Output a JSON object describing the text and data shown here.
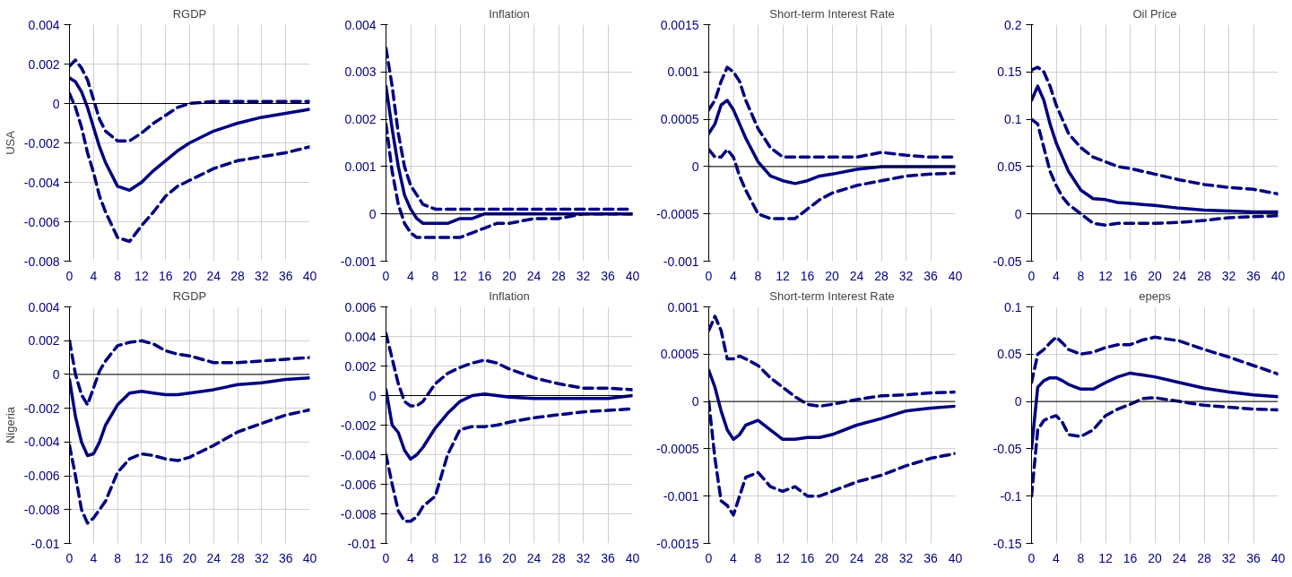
{
  "chart_data": [
    {
      "type": "line",
      "title": "RGDP",
      "ylabel": "USA",
      "x": [
        0,
        1,
        2,
        3,
        4,
        5,
        6,
        8,
        10,
        12,
        14,
        16,
        18,
        20,
        24,
        28,
        32,
        36,
        40
      ],
      "xlim": [
        0,
        40
      ],
      "xticks": [
        0,
        4,
        8,
        12,
        16,
        20,
        24,
        28,
        32,
        36,
        40
      ],
      "ylim": [
        -0.008,
        0.004
      ],
      "yticks": [
        -0.008,
        -0.006,
        -0.004,
        -0.002,
        0,
        0.002,
        0.004
      ],
      "grid": true,
      "ref_lines": [
        {
          "axis": "y",
          "value": 0,
          "color": "#000000"
        }
      ],
      "series": [
        {
          "color": "#000080",
          "line_style": "dashed",
          "values": [
            0.0019,
            0.0022,
            0.0018,
            0.0012,
            0.0002,
            -0.0008,
            -0.0014,
            -0.0019,
            -0.0019,
            -0.0015,
            -0.001,
            -0.0006,
            -0.0002,
            0.0,
            0.0001,
            0.0001,
            0.0001,
            0.0001,
            0.0001
          ]
        },
        {
          "color": "#000080",
          "line_style": "solid",
          "values": [
            0.0013,
            0.0011,
            0.0006,
            -0.0002,
            -0.0012,
            -0.0022,
            -0.003,
            -0.0042,
            -0.0044,
            -0.004,
            -0.0034,
            -0.0029,
            -0.0024,
            -0.002,
            -0.0014,
            -0.001,
            -0.0007,
            -0.0005,
            -0.0003
          ]
        },
        {
          "color": "#000080",
          "line_style": "dashed",
          "values": [
            0.0005,
            -0.0002,
            -0.0012,
            -0.0025,
            -0.0035,
            -0.0047,
            -0.0055,
            -0.0068,
            -0.007,
            -0.0062,
            -0.0055,
            -0.0047,
            -0.0042,
            -0.0039,
            -0.0033,
            -0.0029,
            -0.0027,
            -0.0025,
            -0.0022
          ]
        }
      ]
    },
    {
      "type": "line",
      "title": "Inflation",
      "x": [
        0,
        1,
        2,
        3,
        4,
        5,
        6,
        8,
        10,
        12,
        14,
        16,
        18,
        20,
        24,
        28,
        32,
        36,
        40
      ],
      "xlim": [
        0,
        40
      ],
      "xticks": [
        0,
        4,
        8,
        12,
        16,
        20,
        24,
        28,
        32,
        36,
        40
      ],
      "ylim": [
        -0.001,
        0.004
      ],
      "yticks": [
        -0.001,
        0,
        0.001,
        0.002,
        0.003,
        0.004
      ],
      "grid": true,
      "ref_lines": [
        {
          "axis": "y",
          "value": 0,
          "color": "#000000"
        }
      ],
      "series": [
        {
          "color": "#000080",
          "line_style": "dashed",
          "values": [
            0.0035,
            0.0027,
            0.0017,
            0.001,
            0.0006,
            0.0004,
            0.0002,
            0.0001,
            0.0001,
            0.0001,
            0.0001,
            0.0001,
            0.0001,
            0.0001,
            0.0001,
            0.0001,
            0.0001,
            0.0001,
            0.0001
          ]
        },
        {
          "color": "#000080",
          "line_style": "solid",
          "values": [
            0.0027,
            0.0018,
            0.001,
            0.0004,
            0.0001,
            -0.0001,
            -0.0002,
            -0.0002,
            -0.0002,
            -0.0001,
            -0.0001,
            0,
            0,
            0,
            0,
            0,
            0,
            0,
            0
          ]
        },
        {
          "color": "#000080",
          "line_style": "dashed",
          "values": [
            0.0019,
            0.0009,
            0.0002,
            -0.0002,
            -0.0004,
            -0.0005,
            -0.0005,
            -0.0005,
            -0.0005,
            -0.0005,
            -0.0004,
            -0.0003,
            -0.0002,
            -0.0002,
            -0.0001,
            -0.0001,
            0,
            0,
            0
          ]
        }
      ]
    },
    {
      "type": "line",
      "title": "Short-term Interest Rate",
      "x": [
        0,
        1,
        2,
        3,
        4,
        5,
        6,
        8,
        10,
        12,
        14,
        16,
        18,
        20,
        24,
        28,
        32,
        36,
        40
      ],
      "xlim": [
        0,
        40
      ],
      "xticks": [
        0,
        4,
        8,
        12,
        16,
        20,
        24,
        28,
        32,
        36,
        40
      ],
      "ylim": [
        -0.001,
        0.0015
      ],
      "yticks": [
        -0.001,
        -0.0005,
        0,
        0.0005,
        0.001,
        0.0015
      ],
      "grid": true,
      "ref_lines": [
        {
          "axis": "y",
          "value": 0,
          "color": "#000000"
        }
      ],
      "series": [
        {
          "color": "#000080",
          "line_style": "dashed",
          "values": [
            0.0006,
            0.0007,
            0.0009,
            0.00105,
            0.001,
            0.0009,
            0.0007,
            0.0004,
            0.0002,
            0.0001,
            0.0001,
            0.0001,
            0.0001,
            0.0001,
            0.0001,
            0.00015,
            0.00012,
            0.0001,
            0.0001
          ]
        },
        {
          "color": "#000080",
          "line_style": "solid",
          "values": [
            0.00035,
            0.00045,
            0.00065,
            0.0007,
            0.0006,
            0.00045,
            0.0003,
            5e-05,
            -0.0001,
            -0.00015,
            -0.00018,
            -0.00015,
            -0.0001,
            -8e-05,
            -3e-05,
            0,
            0,
            0,
            0
          ]
        },
        {
          "color": "#000080",
          "line_style": "dashed",
          "values": [
            0.00018,
            0.0001,
            0.0001,
            0.00018,
            0.0001,
            -0.0001,
            -0.00025,
            -0.0005,
            -0.00055,
            -0.00055,
            -0.00055,
            -0.00045,
            -0.00035,
            -0.00028,
            -0.0002,
            -0.00015,
            -0.0001,
            -8e-05,
            -7e-05
          ]
        }
      ]
    },
    {
      "type": "line",
      "title": "Oil Price",
      "x": [
        0,
        1,
        2,
        3,
        4,
        5,
        6,
        8,
        10,
        12,
        14,
        16,
        18,
        20,
        24,
        28,
        32,
        36,
        40
      ],
      "xlim": [
        0,
        40
      ],
      "xticks": [
        0,
        4,
        8,
        12,
        16,
        20,
        24,
        28,
        32,
        36,
        40
      ],
      "ylim": [
        -0.05,
        0.2
      ],
      "yticks": [
        -0.05,
        0,
        0.05,
        0.1,
        0.15,
        0.2
      ],
      "grid": true,
      "ref_lines": [
        {
          "axis": "y",
          "value": 0,
          "color": "#000000"
        }
      ],
      "series": [
        {
          "color": "#000080",
          "line_style": "dashed",
          "values": [
            0.152,
            0.155,
            0.15,
            0.135,
            0.115,
            0.1,
            0.085,
            0.07,
            0.06,
            0.055,
            0.05,
            0.048,
            0.045,
            0.042,
            0.036,
            0.031,
            0.028,
            0.026,
            0.021
          ]
        },
        {
          "color": "#000080",
          "line_style": "solid",
          "values": [
            0.12,
            0.135,
            0.12,
            0.095,
            0.075,
            0.06,
            0.045,
            0.025,
            0.016,
            0.015,
            0.012,
            0.011,
            0.01,
            0.009,
            0.006,
            0.004,
            0.003,
            0.002,
            0.002
          ]
        },
        {
          "color": "#000080",
          "line_style": "dashed",
          "values": [
            0.1,
            0.095,
            0.07,
            0.045,
            0.03,
            0.018,
            0.01,
            0.0,
            -0.01,
            -0.012,
            -0.01,
            -0.01,
            -0.01,
            -0.01,
            -0.009,
            -0.007,
            -0.004,
            -0.003,
            -0.002
          ]
        }
      ]
    },
    {
      "type": "line",
      "title": "RGDP",
      "ylabel": "Nigeria",
      "x": [
        0,
        1,
        2,
        3,
        4,
        5,
        6,
        8,
        10,
        12,
        14,
        16,
        18,
        20,
        24,
        28,
        32,
        36,
        40
      ],
      "xlim": [
        0,
        40
      ],
      "xticks": [
        0,
        4,
        8,
        12,
        16,
        20,
        24,
        28,
        32,
        36,
        40
      ],
      "ylim": [
        -0.01,
        0.004
      ],
      "yticks": [
        -0.01,
        -0.008,
        -0.006,
        -0.004,
        -0.002,
        0,
        0.002,
        0.004
      ],
      "grid": true,
      "ref_lines": [
        {
          "axis": "y",
          "value": 0,
          "color": "#000000"
        }
      ],
      "series": [
        {
          "color": "#000080",
          "line_style": "dashed",
          "values": [
            0.002,
            0.0,
            -0.0012,
            -0.0018,
            -0.0008,
            0.0002,
            0.0008,
            0.0017,
            0.0019,
            0.002,
            0.0018,
            0.0014,
            0.0012,
            0.0011,
            0.0007,
            0.0007,
            0.0008,
            0.0009,
            0.001
          ]
        },
        {
          "color": "#000080",
          "line_style": "solid",
          "values": [
            -0.0003,
            -0.0025,
            -0.004,
            -0.0048,
            -0.0047,
            -0.004,
            -0.003,
            -0.0018,
            -0.0011,
            -0.001,
            -0.0011,
            -0.0012,
            -0.0012,
            -0.0011,
            -0.0009,
            -0.0006,
            -0.0005,
            -0.0003,
            -0.0002
          ]
        },
        {
          "color": "#000080",
          "line_style": "dashed",
          "values": [
            -0.0042,
            -0.006,
            -0.008,
            -0.0088,
            -0.0085,
            -0.008,
            -0.0075,
            -0.0058,
            -0.005,
            -0.0047,
            -0.0048,
            -0.005,
            -0.0051,
            -0.0049,
            -0.0042,
            -0.0034,
            -0.0029,
            -0.0024,
            -0.0021
          ]
        }
      ]
    },
    {
      "type": "line",
      "title": "Inflation",
      "x": [
        0,
        1,
        2,
        3,
        4,
        5,
        6,
        8,
        10,
        12,
        14,
        16,
        18,
        20,
        24,
        28,
        32,
        36,
        40
      ],
      "xlim": [
        0,
        40
      ],
      "xticks": [
        0,
        4,
        8,
        12,
        16,
        20,
        24,
        28,
        32,
        36,
        40
      ],
      "ylim": [
        -0.01,
        0.006
      ],
      "yticks": [
        -0.01,
        -0.008,
        -0.006,
        -0.004,
        -0.002,
        0,
        0.002,
        0.004,
        0.006
      ],
      "grid": true,
      "ref_lines": [
        {
          "axis": "y",
          "value": 0,
          "color": "#000000"
        }
      ],
      "series": [
        {
          "color": "#000080",
          "line_style": "dashed",
          "values": [
            0.0042,
            0.0025,
            0.0008,
            -0.0004,
            -0.0007,
            -0.0007,
            -0.0004,
            0.0008,
            0.0015,
            0.0019,
            0.0022,
            0.0024,
            0.0022,
            0.0018,
            0.0012,
            0.0008,
            0.0005,
            0.0005,
            0.0004
          ]
        },
        {
          "color": "#000080",
          "line_style": "solid",
          "values": [
            0.0004,
            -0.002,
            -0.0025,
            -0.0037,
            -0.0043,
            -0.004,
            -0.0035,
            -0.0022,
            -0.0012,
            -0.0004,
            0,
            0.0001,
            0,
            -0.0001,
            -0.0002,
            -0.0002,
            -0.0002,
            -0.0002,
            0
          ]
        },
        {
          "color": "#000080",
          "line_style": "dashed",
          "values": [
            -0.004,
            -0.006,
            -0.0078,
            -0.0085,
            -0.0085,
            -0.0082,
            -0.0075,
            -0.0068,
            -0.004,
            -0.0023,
            -0.0021,
            -0.0021,
            -0.002,
            -0.0018,
            -0.0015,
            -0.0013,
            -0.0011,
            -0.001,
            -0.0009
          ]
        }
      ]
    },
    {
      "type": "line",
      "title": "Short-term Interest Rate",
      "x": [
        0,
        1,
        2,
        3,
        4,
        5,
        6,
        8,
        10,
        12,
        14,
        16,
        18,
        20,
        24,
        28,
        32,
        36,
        40
      ],
      "xlim": [
        0,
        40
      ],
      "xticks": [
        0,
        4,
        8,
        12,
        16,
        20,
        24,
        28,
        32,
        36,
        40
      ],
      "ylim": [
        -0.0015,
        0.001
      ],
      "yticks": [
        -0.0015,
        -0.001,
        -0.0005,
        0,
        0.0005,
        0.001
      ],
      "grid": true,
      "ref_lines": [
        {
          "axis": "y",
          "value": 0,
          "color": "#000000"
        }
      ],
      "series": [
        {
          "color": "#000080",
          "line_style": "dashed",
          "values": [
            0.00075,
            0.0009,
            0.00075,
            0.00045,
            0.00045,
            0.00048,
            0.00045,
            0.00038,
            0.00025,
            0.00015,
            5e-05,
            -3e-05,
            -5e-05,
            -3e-05,
            2e-05,
            6e-05,
            7e-05,
            9e-05,
            0.0001
          ]
        },
        {
          "color": "#000080",
          "line_style": "solid",
          "values": [
            0.00033,
            0.00015,
            -0.0001,
            -0.0003,
            -0.0004,
            -0.00035,
            -0.00025,
            -0.0002,
            -0.0003,
            -0.0004,
            -0.0004,
            -0.00038,
            -0.00038,
            -0.00035,
            -0.00025,
            -0.00018,
            -0.0001,
            -7e-05,
            -5e-05
          ]
        },
        {
          "color": "#000080",
          "line_style": "dashed",
          "values": [
            0,
            -0.0006,
            -0.00105,
            -0.0011,
            -0.0012,
            -0.001,
            -0.0008,
            -0.00075,
            -0.0009,
            -0.00095,
            -0.0009,
            -0.001,
            -0.001,
            -0.00095,
            -0.00085,
            -0.00078,
            -0.00068,
            -0.0006,
            -0.00055
          ]
        }
      ]
    },
    {
      "type": "line",
      "title": "epeps",
      "x": [
        0,
        1,
        2,
        3,
        4,
        5,
        6,
        8,
        10,
        12,
        14,
        16,
        18,
        20,
        24,
        28,
        32,
        36,
        40
      ],
      "xlim": [
        0,
        40
      ],
      "xticks": [
        0,
        4,
        8,
        12,
        16,
        20,
        24,
        28,
        32,
        36,
        40
      ],
      "ylim": [
        -0.15,
        0.1
      ],
      "yticks": [
        -0.15,
        -0.1,
        -0.05,
        0,
        0.05,
        0.1
      ],
      "grid": true,
      "ref_lines": [
        {
          "axis": "y",
          "value": 0,
          "color": "#000000"
        }
      ],
      "series": [
        {
          "color": "#000080",
          "line_style": "dashed",
          "values": [
            0.02,
            0.05,
            0.055,
            0.062,
            0.068,
            0.062,
            0.055,
            0.05,
            0.052,
            0.057,
            0.06,
            0.06,
            0.065,
            0.068,
            0.064,
            0.055,
            0.047,
            0.038,
            0.029
          ]
        },
        {
          "color": "#000080",
          "line_style": "solid",
          "values": [
            -0.05,
            0.015,
            0.022,
            0.025,
            0.025,
            0.022,
            0.018,
            0.013,
            0.013,
            0.02,
            0.026,
            0.03,
            0.028,
            0.026,
            0.02,
            0.014,
            0.01,
            0.007,
            0.005
          ]
        },
        {
          "color": "#000080",
          "line_style": "dashed",
          "values": [
            -0.1,
            -0.03,
            -0.02,
            -0.017,
            -0.015,
            -0.022,
            -0.035,
            -0.037,
            -0.03,
            -0.015,
            -0.008,
            -0.003,
            0.003,
            0.004,
            0.0,
            -0.004,
            -0.006,
            -0.008,
            -0.009
          ]
        }
      ]
    }
  ]
}
